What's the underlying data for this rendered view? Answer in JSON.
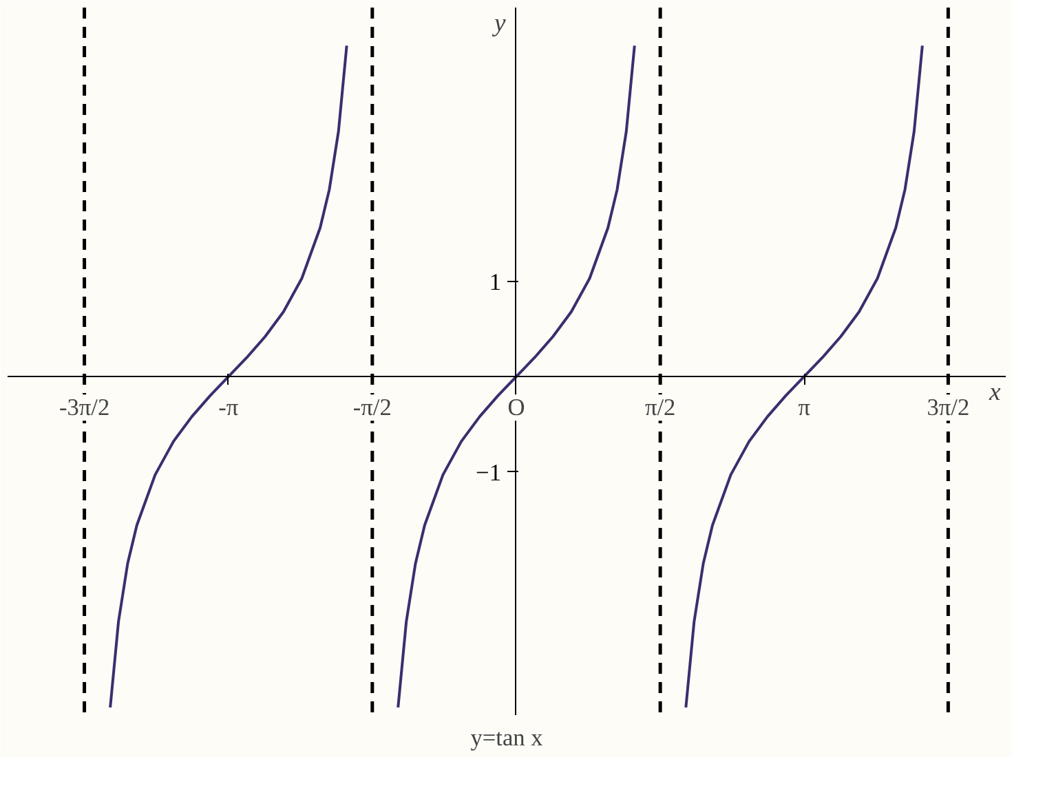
{
  "chart_data": {
    "type": "line",
    "title": "y=tan x",
    "xlabel": "x",
    "ylabel": "y",
    "xlim": [
      -5.55,
      5.34
    ],
    "ylim": [
      -3.55,
      3.87
    ],
    "xticks": [
      {
        "value": -4.712,
        "label": "-3π/2"
      },
      {
        "value": -3.1416,
        "label": "-π"
      },
      {
        "value": -1.5708,
        "label": "-π/2"
      },
      {
        "value": 0,
        "label": "O"
      },
      {
        "value": 1.5708,
        "label": "π/2"
      },
      {
        "value": 3.1416,
        "label": "π"
      },
      {
        "value": 4.712,
        "label": "3π/2"
      }
    ],
    "yticks": [
      -1,
      1
    ],
    "series": [
      {
        "color": "#3b2e6e",
        "x": [
          -4.43,
          -4.34,
          -4.24,
          -4.14,
          -3.94,
          -3.74,
          -3.54,
          -3.34,
          -3.14,
          -2.94,
          -2.74,
          -2.54,
          -2.34,
          -2.14,
          -2.04,
          -1.94,
          -1.85
        ],
        "values": [
          -3.47,
          -2.57,
          -1.96,
          -1.56,
          -1.03,
          -0.68,
          -0.42,
          -0.2,
          0,
          0.2,
          0.42,
          0.68,
          1.03,
          1.56,
          1.96,
          2.57,
          3.47
        ]
      },
      {
        "color": "#3b2e6e",
        "x": [
          -1.29,
          -1.2,
          -1.1,
          -1.0,
          -0.8,
          -0.6,
          -0.4,
          -0.2,
          0,
          0.2,
          0.4,
          0.6,
          0.8,
          1.0,
          1.1,
          1.2,
          1.29
        ],
        "values": [
          -3.47,
          -2.57,
          -1.96,
          -1.56,
          -1.03,
          -0.68,
          -0.42,
          -0.2,
          0,
          0.2,
          0.42,
          0.68,
          1.03,
          1.56,
          1.96,
          2.57,
          3.47
        ]
      },
      {
        "color": "#3b2e6e",
        "x": [
          1.85,
          1.94,
          2.04,
          2.14,
          2.34,
          2.54,
          2.74,
          2.94,
          3.14,
          3.34,
          3.54,
          3.74,
          3.94,
          4.14,
          4.24,
          4.34,
          4.43
        ],
        "values": [
          -3.47,
          -2.57,
          -1.96,
          -1.56,
          -1.03,
          -0.68,
          -0.42,
          -0.2,
          0,
          0.2,
          0.42,
          0.68,
          1.03,
          1.56,
          1.96,
          2.57,
          3.47
        ]
      }
    ],
    "ref_lines": [
      {
        "axis": "x",
        "value": -4.712,
        "color": "#000000",
        "line_style": "dashed"
      },
      {
        "axis": "x",
        "value": -1.5708,
        "color": "#000000",
        "line_style": "dashed"
      },
      {
        "axis": "x",
        "value": 1.5708,
        "color": "#000000",
        "line_style": "dashed"
      },
      {
        "axis": "x",
        "value": 4.712,
        "color": "#000000",
        "line_style": "dashed"
      }
    ],
    "grid": false
  }
}
